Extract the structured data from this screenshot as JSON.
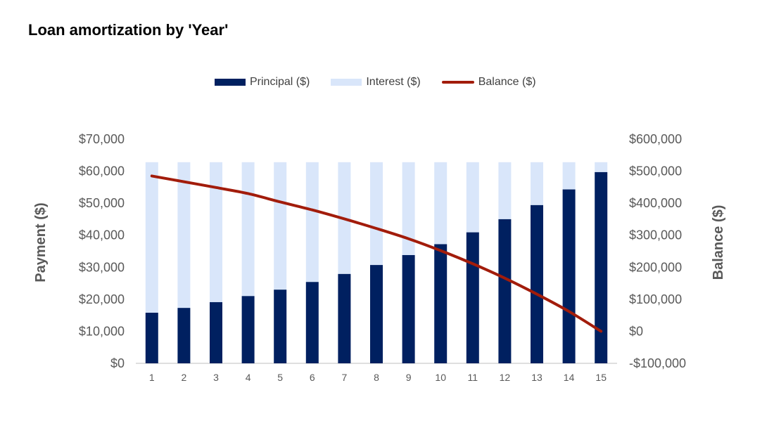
{
  "title": "Loan amortization by 'Year'",
  "colors": {
    "principal": "#002060",
    "interest": "#d9e6fa",
    "balance": "#a21c0b",
    "axis_text": "#595959",
    "axis_line": "#bfbfbf"
  },
  "chart_data": {
    "type": "bar",
    "stacked": true,
    "title": "Loan amortization by 'Year'",
    "categories": [
      "1",
      "2",
      "3",
      "4",
      "5",
      "6",
      "7",
      "8",
      "9",
      "10",
      "11",
      "12",
      "13",
      "14",
      "15"
    ],
    "series": [
      {
        "name": "Principal ($)",
        "type": "bar",
        "axis": "left",
        "values": [
          15800,
          17300,
          19100,
          21000,
          23000,
          25400,
          27900,
          30700,
          33800,
          37200,
          40900,
          45000,
          49400,
          54300,
          59700
        ]
      },
      {
        "name": "Interest ($)",
        "type": "bar",
        "axis": "left",
        "values": [
          47000,
          45500,
          43700,
          41800,
          39800,
          37400,
          34900,
          32100,
          29000,
          25600,
          21900,
          17800,
          13400,
          8500,
          3100
        ]
      },
      {
        "name": "Balance ($)",
        "type": "line",
        "axis": "right",
        "values": [
          485000,
          467000,
          449000,
          430000,
          404000,
          379000,
          351000,
          321000,
          289000,
          252000,
          211000,
          166000,
          116000,
          62000,
          0
        ]
      }
    ],
    "y_left": {
      "label": "Payment ($)",
      "ylim": [
        0,
        70000
      ],
      "ticks": [
        0,
        10000,
        20000,
        30000,
        40000,
        50000,
        60000,
        70000
      ],
      "tick_labels": [
        "$0",
        "$10,000",
        "$20,000",
        "$30,000",
        "$40,000",
        "$50,000",
        "$60,000",
        "$70,000"
      ]
    },
    "y_right": {
      "label": "Balance ($)",
      "ylim": [
        -100000,
        600000
      ],
      "ticks": [
        -100000,
        0,
        100000,
        200000,
        300000,
        400000,
        500000,
        600000
      ],
      "tick_labels": [
        "-$100,000",
        "$0",
        "$100,000",
        "$200,000",
        "$300,000",
        "$400,000",
        "$500,000",
        "$600,000"
      ]
    },
    "legend_position": "top",
    "grid": false
  }
}
